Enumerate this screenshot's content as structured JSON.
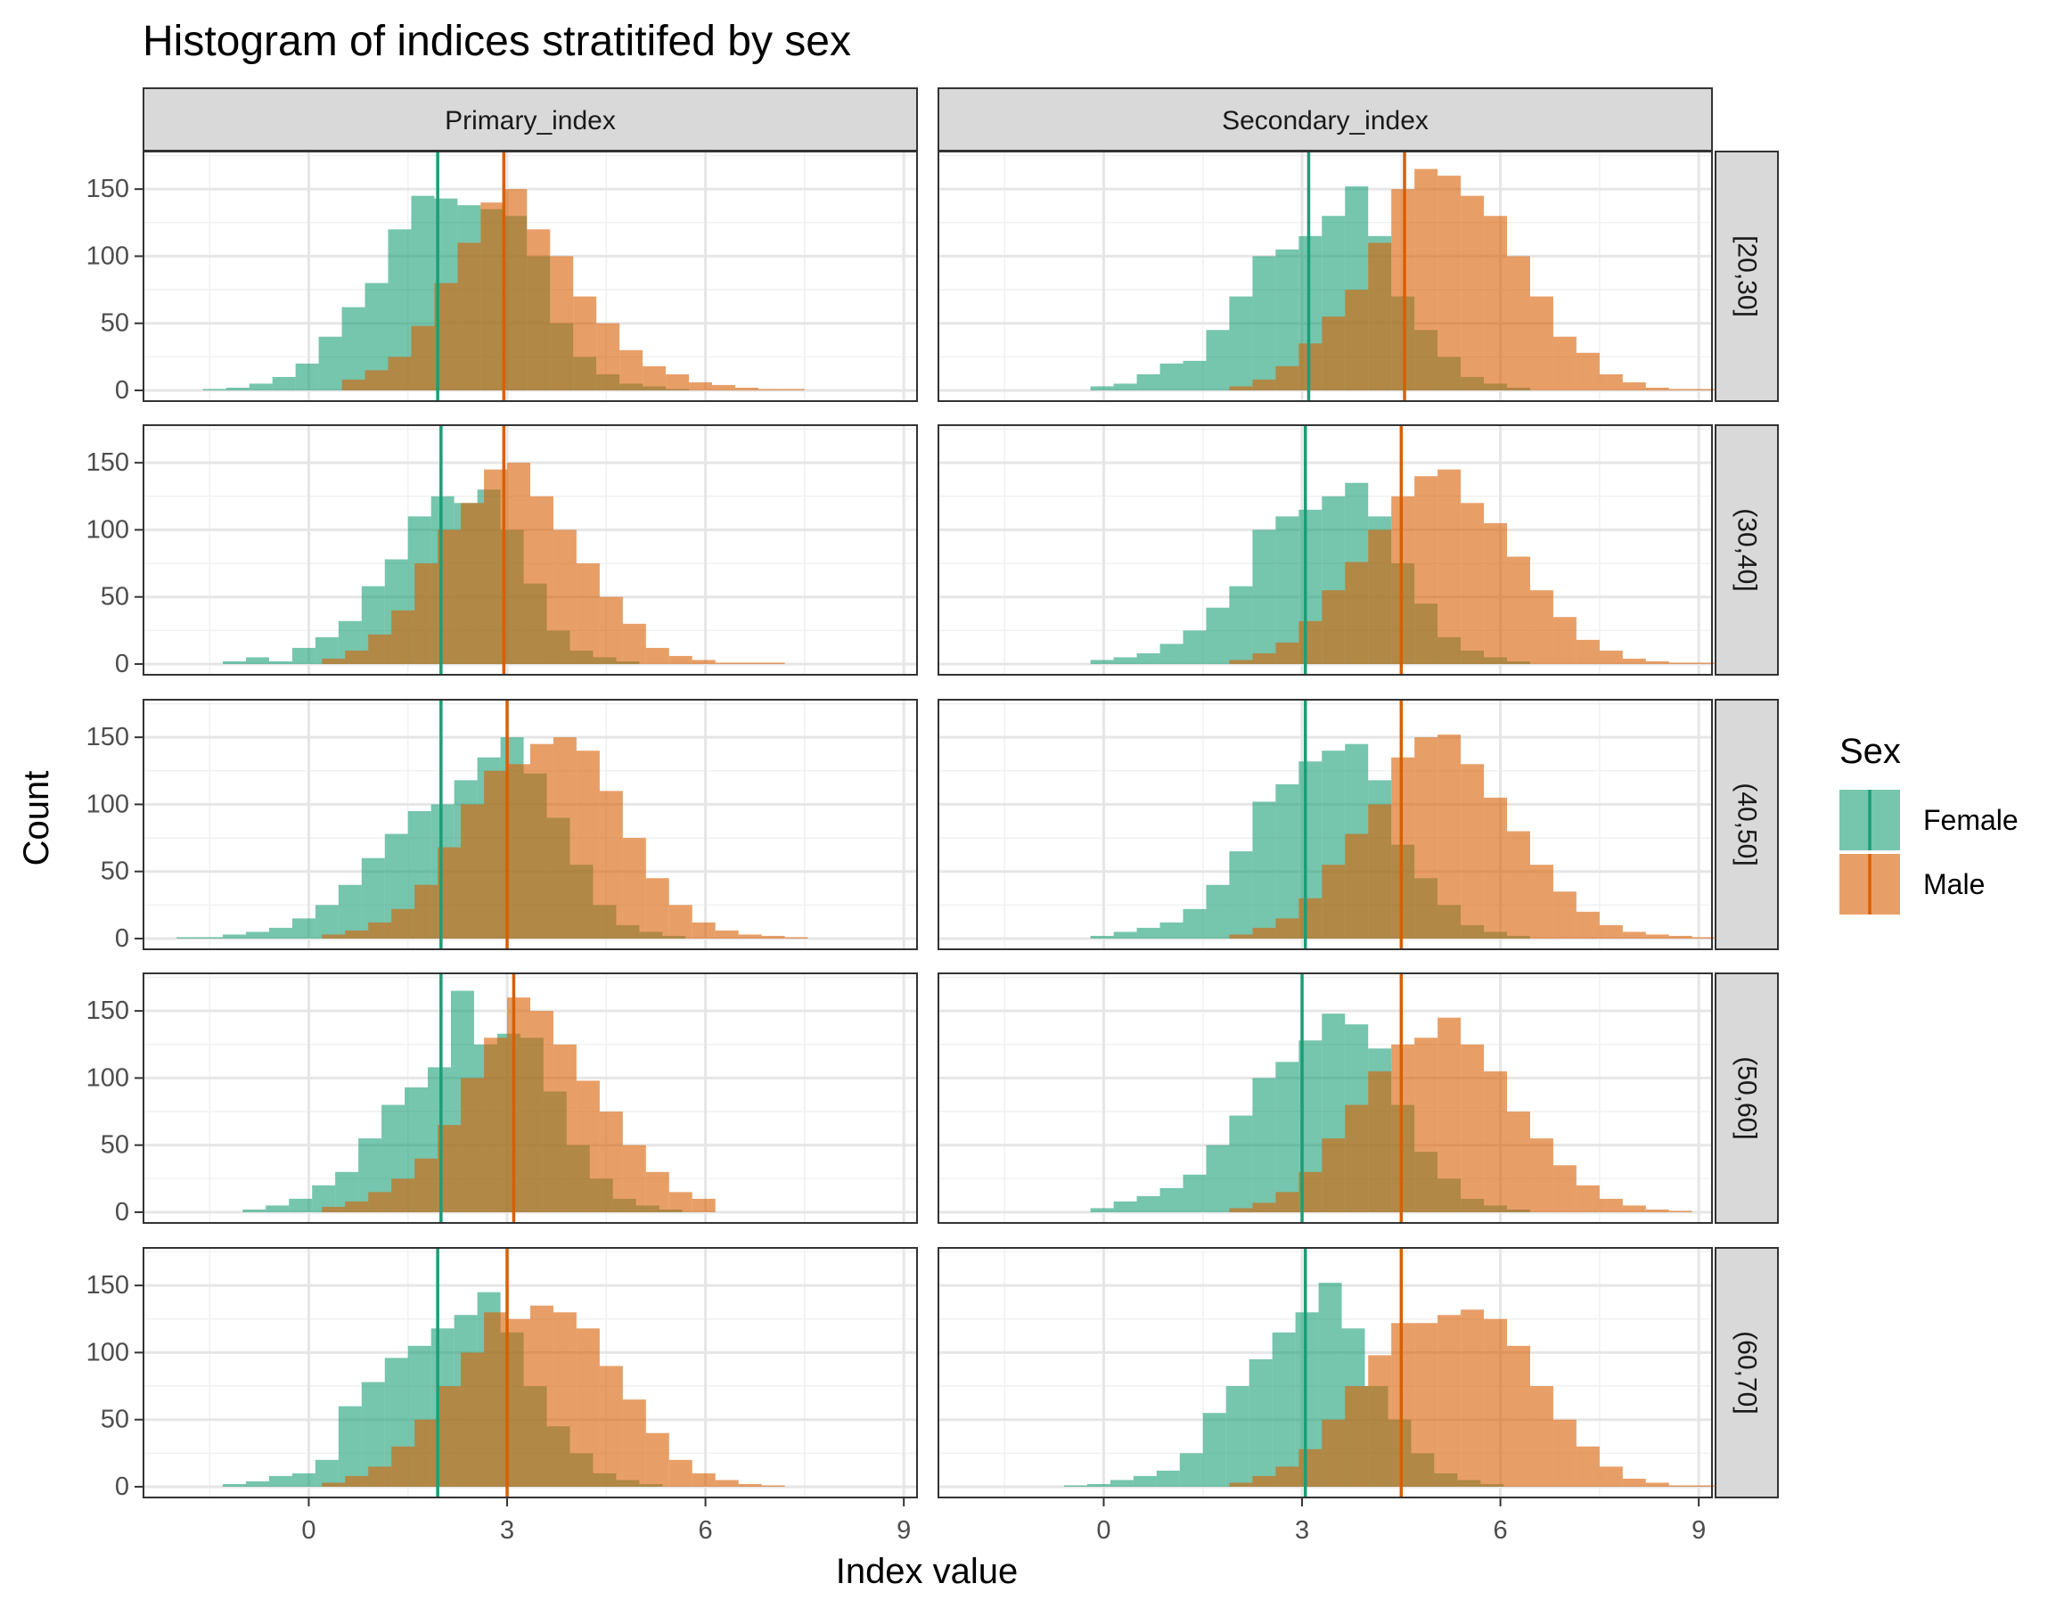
{
  "chart_data": {
    "type": "histogram",
    "title": "Histogram of indices stratitifed by sex",
    "xlabel": "Index value",
    "ylabel": "Count",
    "xlim": [
      -2.5,
      9.2
    ],
    "ylim": [
      -8,
      178
    ],
    "x_ticks": [
      0,
      3,
      6,
      9
    ],
    "y_ticks": [
      0,
      50,
      100,
      150
    ],
    "bin_width": 0.35,
    "column_facets": [
      "Primary_index",
      "Secondary_index"
    ],
    "row_facets": [
      "[20,30]",
      "(30,40]",
      "(40,50]",
      "(50,60]",
      "(60,70]"
    ],
    "legend": {
      "title": "Sex",
      "position": "right",
      "entries": [
        {
          "name": "Female",
          "color": "#1B9E77"
        },
        {
          "name": "Male",
          "color": "#D95F02"
        }
      ]
    },
    "grid": true,
    "panels": [
      {
        "column": "Primary_index",
        "row": "[20,30]",
        "female": {
          "start": -1.6,
          "counts": [
            1,
            2,
            5,
            10,
            20,
            40,
            62,
            80,
            120,
            145,
            143,
            138,
            135,
            130,
            100,
            50,
            25,
            12,
            5,
            3,
            1
          ],
          "mean": 1.95
        },
        "male": {
          "start": 0.5,
          "counts": [
            8,
            15,
            25,
            48,
            80,
            110,
            140,
            150,
            120,
            100,
            70,
            50,
            30,
            18,
            12,
            6,
            4,
            2,
            1,
            1
          ],
          "mean": 2.95
        }
      },
      {
        "column": "Secondary_index",
        "row": "[20,30]",
        "female": {
          "start": -0.2,
          "counts": [
            3,
            5,
            12,
            20,
            22,
            45,
            70,
            100,
            105,
            115,
            130,
            152,
            115,
            70,
            45,
            25,
            10,
            5,
            2
          ],
          "mean": 3.1
        },
        "male": {
          "start": 1.9,
          "counts": [
            3,
            8,
            18,
            35,
            55,
            75,
            110,
            150,
            165,
            160,
            145,
            130,
            100,
            70,
            40,
            28,
            12,
            6,
            2,
            1,
            1
          ],
          "mean": 4.55
        }
      },
      {
        "column": "Primary_index",
        "row": "(30,40]",
        "female": {
          "start": -1.3,
          "counts": [
            2,
            5,
            2,
            12,
            20,
            32,
            58,
            78,
            110,
            125,
            120,
            130,
            100,
            60,
            25,
            10,
            5,
            2
          ],
          "mean": 2.0
        },
        "male": {
          "start": 0.2,
          "counts": [
            4,
            10,
            22,
            40,
            75,
            100,
            120,
            145,
            150,
            125,
            100,
            75,
            50,
            30,
            12,
            6,
            3,
            1,
            1,
            1
          ],
          "mean": 2.95
        }
      },
      {
        "column": "Secondary_index",
        "row": "(30,40]",
        "female": {
          "start": -0.2,
          "counts": [
            3,
            5,
            8,
            15,
            25,
            42,
            58,
            100,
            110,
            115,
            125,
            135,
            110,
            75,
            45,
            20,
            10,
            5,
            2
          ],
          "mean": 3.05
        },
        "male": {
          "start": 1.9,
          "counts": [
            3,
            8,
            16,
            32,
            55,
            76,
            100,
            125,
            140,
            145,
            120,
            105,
            80,
            55,
            35,
            18,
            10,
            4,
            2,
            1,
            1
          ],
          "mean": 4.5
        }
      },
      {
        "column": "Primary_index",
        "row": "(40,50]",
        "female": {
          "start": -2.0,
          "counts": [
            1,
            1,
            3,
            5,
            8,
            15,
            25,
            40,
            60,
            78,
            95,
            100,
            118,
            135,
            150,
            123,
            90,
            55,
            25,
            10,
            5,
            2
          ],
          "mean": 2.0
        },
        "male": {
          "start": 0.2,
          "counts": [
            3,
            6,
            12,
            22,
            40,
            68,
            100,
            125,
            130,
            145,
            150,
            140,
            110,
            75,
            45,
            25,
            12,
            6,
            3,
            2,
            1
          ],
          "mean": 3.0
        }
      },
      {
        "column": "Secondary_index",
        "row": "(40,50]",
        "female": {
          "start": -0.2,
          "counts": [
            2,
            5,
            8,
            12,
            22,
            40,
            65,
            102,
            115,
            132,
            140,
            145,
            118,
            70,
            45,
            25,
            10,
            5,
            2
          ],
          "mean": 3.05
        },
        "male": {
          "start": 1.9,
          "counts": [
            3,
            8,
            15,
            30,
            55,
            78,
            100,
            135,
            150,
            152,
            130,
            105,
            80,
            55,
            35,
            20,
            10,
            5,
            3,
            2,
            1
          ],
          "mean": 4.5
        }
      },
      {
        "column": "Primary_index",
        "row": "(50,60]",
        "female": {
          "start": -1.0,
          "counts": [
            2,
            5,
            10,
            20,
            30,
            55,
            80,
            93,
            108,
            165,
            125,
            133,
            130,
            90,
            50,
            25,
            10,
            5,
            2
          ],
          "mean": 2.0
        },
        "male": {
          "start": 0.2,
          "counts": [
            4,
            8,
            15,
            25,
            40,
            65,
            100,
            130,
            160,
            150,
            125,
            98,
            75,
            50,
            30,
            15,
            10
          ],
          "mean": 3.1
        }
      },
      {
        "column": "Secondary_index",
        "row": "(50,60]",
        "female": {
          "start": -0.2,
          "counts": [
            3,
            8,
            12,
            18,
            28,
            50,
            72,
            100,
            112,
            128,
            148,
            140,
            122,
            80,
            45,
            25,
            10,
            5,
            2
          ],
          "mean": 3.0
        },
        "male": {
          "start": 1.9,
          "counts": [
            3,
            7,
            15,
            30,
            55,
            80,
            105,
            125,
            130,
            145,
            125,
            105,
            75,
            55,
            35,
            20,
            10,
            5,
            2,
            1
          ],
          "mean": 4.5
        }
      },
      {
        "column": "Primary_index",
        "row": "(60,70]",
        "female": {
          "start": -1.3,
          "counts": [
            2,
            4,
            8,
            10,
            20,
            60,
            78,
            96,
            105,
            118,
            128,
            145,
            115,
            75,
            45,
            25,
            10,
            5,
            2
          ],
          "mean": 1.95
        },
        "male": {
          "start": 0.2,
          "counts": [
            3,
            8,
            15,
            30,
            50,
            75,
            100,
            130,
            125,
            135,
            130,
            118,
            90,
            65,
            40,
            20,
            10,
            5,
            2,
            1
          ],
          "mean": 3.0
        }
      },
      {
        "column": "Secondary_index",
        "row": "(60,70]",
        "female": {
          "start": -0.6,
          "counts": [
            1,
            2,
            5,
            8,
            12,
            25,
            55,
            75,
            95,
            115,
            130,
            152,
            118,
            75,
            50,
            25,
            10,
            5,
            2
          ],
          "mean": 3.05
        },
        "male": {
          "start": 1.9,
          "counts": [
            3,
            8,
            15,
            28,
            50,
            75,
            98,
            122,
            122,
            128,
            132,
            125,
            105,
            75,
            50,
            30,
            15,
            6,
            3,
            1,
            1
          ],
          "mean": 4.5
        }
      }
    ]
  }
}
